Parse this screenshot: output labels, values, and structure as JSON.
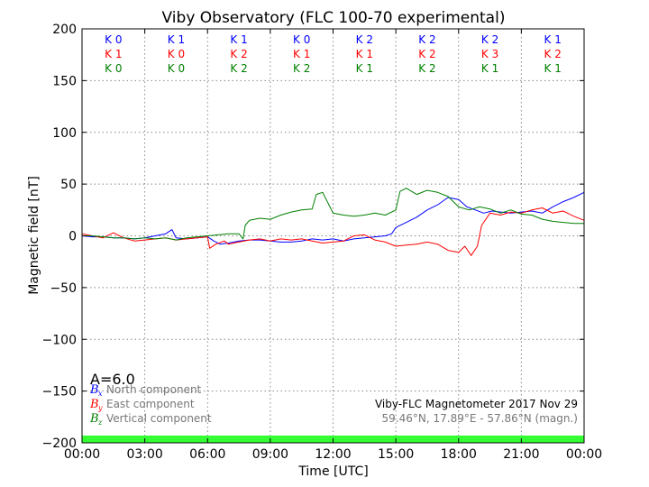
{
  "chart_data": {
    "type": "line",
    "title": "Viby Observatory (FLC 100-70 experimental)",
    "xlabel": "Time [UTC]",
    "ylabel": "Magnetic field [nT]",
    "xlim": [
      0,
      24
    ],
    "ylim": [
      -200,
      200
    ],
    "x_ticks": [
      0,
      3,
      6,
      9,
      12,
      15,
      18,
      21,
      24
    ],
    "x_tick_labels": [
      "00:00",
      "03:00",
      "06:00",
      "09:00",
      "12:00",
      "15:00",
      "18:00",
      "21:00",
      "00:00"
    ],
    "y_ticks": [
      -200,
      -150,
      -100,
      -50,
      0,
      50,
      100,
      150,
      200
    ],
    "y_tick_labels": [
      "−200",
      "−150",
      "−100",
      "−50",
      "0",
      "50",
      "100",
      "150",
      "200"
    ],
    "grid": true,
    "a_index": "A=6.0",
    "legend": {
      "placement": "lower-left",
      "entries": [
        {
          "symbol": "B",
          "sub": "x",
          "label": "North component",
          "color": "#0000ff"
        },
        {
          "symbol": "B",
          "sub": "y",
          "label": "East component",
          "color": "#ff0000"
        },
        {
          "symbol": "B",
          "sub": "z",
          "label": "Vertical component",
          "color": "#008000"
        }
      ]
    },
    "info": {
      "line1": "Viby-FLC Magnetometer 2017 Nov 29",
      "line2": "59.46°N, 17.89°E - 57.86°N (magn.)"
    },
    "k_indices": {
      "north": [
        "K 0",
        "K 1",
        "K 1",
        "K 0",
        "K 2",
        "K 2",
        "K 2",
        "K 1"
      ],
      "east": [
        "K 1",
        "K 0",
        "K 2",
        "K 1",
        "K 1",
        "K 2",
        "K 3",
        "K 2"
      ],
      "vertical": [
        "K 0",
        "K 0",
        "K 2",
        "K 2",
        "K 1",
        "K 2",
        "K 1",
        "K 1"
      ]
    },
    "activity_bar": {
      "color": "#33ff33",
      "range": [
        -200,
        -193
      ]
    },
    "series": [
      {
        "name": "North component",
        "color": "#0000ff",
        "points": [
          [
            0,
            0
          ],
          [
            0.5,
            -1
          ],
          [
            1,
            -1
          ],
          [
            1.5,
            -2
          ],
          [
            2,
            -2
          ],
          [
            2.5,
            -3
          ],
          [
            3,
            -2
          ],
          [
            3.5,
            0
          ],
          [
            4,
            2
          ],
          [
            4.3,
            6
          ],
          [
            4.5,
            -2
          ],
          [
            5,
            -3
          ],
          [
            5.5,
            -2
          ],
          [
            6,
            -1
          ],
          [
            6.3,
            -5
          ],
          [
            6.6,
            -8
          ],
          [
            7,
            -7
          ],
          [
            7.5,
            -5
          ],
          [
            8,
            -4
          ],
          [
            8.5,
            -4
          ],
          [
            9,
            -5
          ],
          [
            9.5,
            -6
          ],
          [
            10,
            -6
          ],
          [
            10.5,
            -5
          ],
          [
            11,
            -3
          ],
          [
            11.5,
            -4
          ],
          [
            12,
            -3
          ],
          [
            12.5,
            -5
          ],
          [
            13,
            -3
          ],
          [
            13.5,
            -2
          ],
          [
            14,
            -1
          ],
          [
            14.5,
            0
          ],
          [
            14.8,
            2
          ],
          [
            15,
            8
          ],
          [
            15.5,
            13
          ],
          [
            16,
            18
          ],
          [
            16.5,
            25
          ],
          [
            17,
            30
          ],
          [
            17.5,
            37
          ],
          [
            18,
            35
          ],
          [
            18.4,
            28
          ],
          [
            18.8,
            25
          ],
          [
            19.2,
            22
          ],
          [
            19.6,
            24
          ],
          [
            20,
            23
          ],
          [
            20.5,
            22
          ],
          [
            21,
            23
          ],
          [
            21.5,
            24
          ],
          [
            22,
            22
          ],
          [
            22.5,
            28
          ],
          [
            23,
            33
          ],
          [
            23.5,
            37
          ],
          [
            24,
            42
          ]
        ]
      },
      {
        "name": "East component",
        "color": "#ff0000",
        "points": [
          [
            0,
            2
          ],
          [
            0.5,
            0
          ],
          [
            1,
            -2
          ],
          [
            1.5,
            3
          ],
          [
            2,
            -2
          ],
          [
            2.5,
            -5
          ],
          [
            3,
            -4
          ],
          [
            3.5,
            -3
          ],
          [
            4,
            -2
          ],
          [
            4.5,
            -4
          ],
          [
            5,
            -3
          ],
          [
            5.5,
            -2
          ],
          [
            6,
            -1
          ],
          [
            6.1,
            -12
          ],
          [
            6.4,
            -8
          ],
          [
            6.8,
            -5
          ],
          [
            7,
            -8
          ],
          [
            7.5,
            -6
          ],
          [
            8,
            -4
          ],
          [
            8.5,
            -3
          ],
          [
            9,
            -5
          ],
          [
            9.5,
            -3
          ],
          [
            10,
            -4
          ],
          [
            10.5,
            -3
          ],
          [
            11,
            -5
          ],
          [
            11.5,
            -7
          ],
          [
            12,
            -6
          ],
          [
            12.5,
            -5
          ],
          [
            13,
            0
          ],
          [
            13.5,
            1
          ],
          [
            14,
            -4
          ],
          [
            14.5,
            -6
          ],
          [
            15,
            -10
          ],
          [
            15.5,
            -9
          ],
          [
            16,
            -8
          ],
          [
            16.5,
            -6
          ],
          [
            17,
            -8
          ],
          [
            17.5,
            -14
          ],
          [
            18,
            -16
          ],
          [
            18.3,
            -10
          ],
          [
            18.6,
            -19
          ],
          [
            18.9,
            -10
          ],
          [
            19.1,
            10
          ],
          [
            19.5,
            22
          ],
          [
            20,
            20
          ],
          [
            20.5,
            23
          ],
          [
            21,
            22
          ],
          [
            21.5,
            25
          ],
          [
            22,
            27
          ],
          [
            22.5,
            22
          ],
          [
            23,
            24
          ],
          [
            23.5,
            19
          ],
          [
            24,
            15
          ]
        ]
      },
      {
        "name": "Vertical component",
        "color": "#008000",
        "points": [
          [
            0,
            0
          ],
          [
            0.5,
            0
          ],
          [
            1,
            -1
          ],
          [
            1.5,
            -2
          ],
          [
            2,
            -2
          ],
          [
            2.5,
            -3
          ],
          [
            3,
            -2
          ],
          [
            3.5,
            -3
          ],
          [
            4,
            -2
          ],
          [
            4.5,
            -4
          ],
          [
            5,
            -2
          ],
          [
            5.5,
            -1
          ],
          [
            6,
            0
          ],
          [
            6.5,
            1
          ],
          [
            7,
            2
          ],
          [
            7.5,
            2
          ],
          [
            7.7,
            -3
          ],
          [
            7.8,
            10
          ],
          [
            8,
            15
          ],
          [
            8.5,
            17
          ],
          [
            9,
            16
          ],
          [
            9.5,
            20
          ],
          [
            10,
            23
          ],
          [
            10.5,
            25
          ],
          [
            11,
            26
          ],
          [
            11.2,
            40
          ],
          [
            11.5,
            42
          ],
          [
            11.8,
            30
          ],
          [
            12,
            22
          ],
          [
            12.5,
            20
          ],
          [
            13,
            19
          ],
          [
            13.5,
            20
          ],
          [
            14,
            22
          ],
          [
            14.5,
            20
          ],
          [
            15,
            25
          ],
          [
            15.2,
            43
          ],
          [
            15.5,
            46
          ],
          [
            16,
            40
          ],
          [
            16.5,
            44
          ],
          [
            17,
            42
          ],
          [
            17.5,
            38
          ],
          [
            18,
            28
          ],
          [
            18.5,
            25
          ],
          [
            19,
            28
          ],
          [
            19.5,
            26
          ],
          [
            20,
            22
          ],
          [
            20.5,
            25
          ],
          [
            21,
            21
          ],
          [
            21.5,
            20
          ],
          [
            22,
            16
          ],
          [
            22.5,
            14
          ],
          [
            23,
            13
          ],
          [
            23.5,
            12
          ],
          [
            24,
            12
          ]
        ]
      }
    ]
  }
}
